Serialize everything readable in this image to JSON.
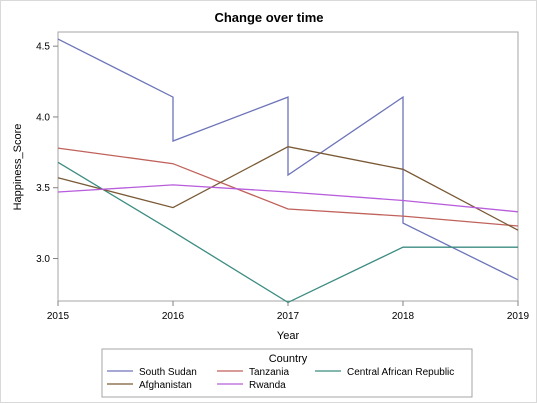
{
  "chart_data": {
    "type": "line",
    "title": "Change over time",
    "xlabel": "Year",
    "ylabel": "Happiness_Score",
    "xlim": [
      2015,
      2019
    ],
    "ylim": [
      2.7,
      4.6
    ],
    "x_ticks": [
      "2015",
      "2016",
      "2017",
      "2018",
      "2019"
    ],
    "y_ticks": [
      "3.0",
      "3.5",
      "4.0",
      "4.5"
    ],
    "x_tick_values": [
      2015,
      2016,
      2017,
      2018,
      2019
    ],
    "y_tick_values": [
      3.0,
      3.5,
      4.0,
      4.5
    ],
    "grid": false,
    "legend": {
      "title": "Country",
      "placement": "bottom"
    },
    "series": [
      {
        "name": "South Sudan",
        "color": "#6d74b8",
        "points": [
          [
            2015,
            4.55
          ],
          [
            2016,
            4.14
          ],
          [
            2016,
            3.83
          ],
          [
            2017,
            4.14
          ],
          [
            2017,
            3.59
          ],
          [
            2018,
            4.14
          ],
          [
            2018,
            3.25
          ],
          [
            2019,
            2.85
          ]
        ]
      },
      {
        "name": "Tanzania",
        "color": "#c0625b",
        "points": [
          [
            2015,
            3.78
          ],
          [
            2016,
            3.67
          ],
          [
            2017,
            3.35
          ],
          [
            2018,
            3.3
          ],
          [
            2019,
            3.23
          ]
        ]
      },
      {
        "name": "Central African Republic",
        "color": "#3c8c82",
        "points": [
          [
            2015,
            3.68
          ],
          [
            2016,
            3.19
          ],
          [
            2017,
            2.69
          ],
          [
            2018,
            3.08
          ],
          [
            2019,
            3.08
          ]
        ]
      },
      {
        "name": "Afghanistan",
        "color": "#7a5a36",
        "points": [
          [
            2015,
            3.57
          ],
          [
            2016,
            3.36
          ],
          [
            2017,
            3.79
          ],
          [
            2018,
            3.63
          ],
          [
            2019,
            3.2
          ]
        ]
      },
      {
        "name": "Rwanda",
        "color": "#b85ddc",
        "points": [
          [
            2015,
            3.47
          ],
          [
            2016,
            3.52
          ],
          [
            2017,
            3.47
          ],
          [
            2018,
            3.41
          ],
          [
            2019,
            3.33
          ]
        ]
      }
    ]
  }
}
